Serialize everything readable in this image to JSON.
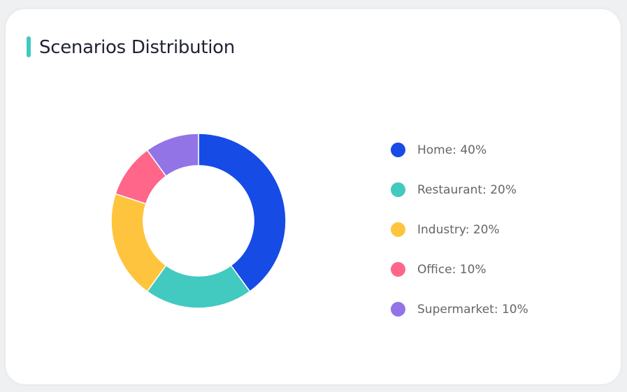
{
  "card": {
    "title": "Scenarios Distribution",
    "accent_color": "#40c9c0"
  },
  "chart_data": {
    "type": "pie",
    "donut": true,
    "title": "Scenarios Distribution",
    "legend_position": "right",
    "categories": [
      "Home",
      "Restaurant",
      "Industry",
      "Office",
      "Supermarket"
    ],
    "values": [
      40,
      20,
      20,
      10,
      10
    ],
    "colors": [
      "#164be6",
      "#42c9c0",
      "#ffc43d",
      "#ff668a",
      "#9274e6"
    ],
    "legend_labels": [
      "Home: 40%",
      "Restaurant: 20%",
      "Industry: 20%",
      "Office: 10%",
      "Supermarket: 10%"
    ]
  }
}
